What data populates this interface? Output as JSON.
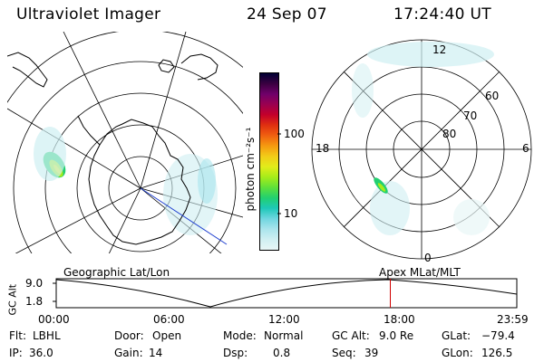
{
  "header": {
    "instrument": "Ultraviolet Imager",
    "date": "24 Sep 07",
    "time": "17:24:40 UT"
  },
  "colorbar": {
    "ticks": [
      "100",
      "10"
    ],
    "unit_label": "photon cm⁻²s⁻¹",
    "colors": [
      "#000033",
      "#3a0040",
      "#70006a",
      "#9b0050",
      "#c4002a",
      "#e03010",
      "#f06010",
      "#f59a10",
      "#f2cc18",
      "#e2ec1a",
      "#a6ec1a",
      "#5fe03a",
      "#22d070",
      "#1ec8b8",
      "#6fd6e0",
      "#a9e4ec",
      "#cfeff2",
      "#e8f6f6"
    ]
  },
  "geographic_map": {
    "label": "Geographic Lat/Lon"
  },
  "apex_map": {
    "label": "Apex MLat/MLT",
    "mlt_labels": {
      "top": "12",
      "left": "18",
      "right": "6",
      "bottom": "0"
    },
    "lat_labels": [
      "60",
      "70",
      "80"
    ]
  },
  "altitude_plot": {
    "ylabel": "GC Alt",
    "yticks": [
      "9.0",
      "1.8"
    ],
    "xticks": [
      "00:00",
      "06:00",
      "12:00",
      "18:00",
      "23:59"
    ],
    "current_time_marker_hour": 17.41,
    "marker_color": "#d00000"
  },
  "status": {
    "flt_label": "Flt:",
    "flt_value": "LBHL",
    "ip_label": "IP:",
    "ip_value": "36.0",
    "door_label": "Door:",
    "door_value": "Open",
    "gain_label": "Gain:",
    "gain_value": "14",
    "mode_label": "Mode:",
    "mode_value": "Normal",
    "dsp_label": "Dsp:",
    "dsp_value": "0.8",
    "gcalt_label": "GC Alt:",
    "gcalt_value": "9.0 Re",
    "seq_label": "Seq:",
    "seq_value": "39",
    "glat_label": "GLat:",
    "glat_value": "−79.4",
    "glon_label": "GLon:",
    "glon_value": "126.5"
  }
}
